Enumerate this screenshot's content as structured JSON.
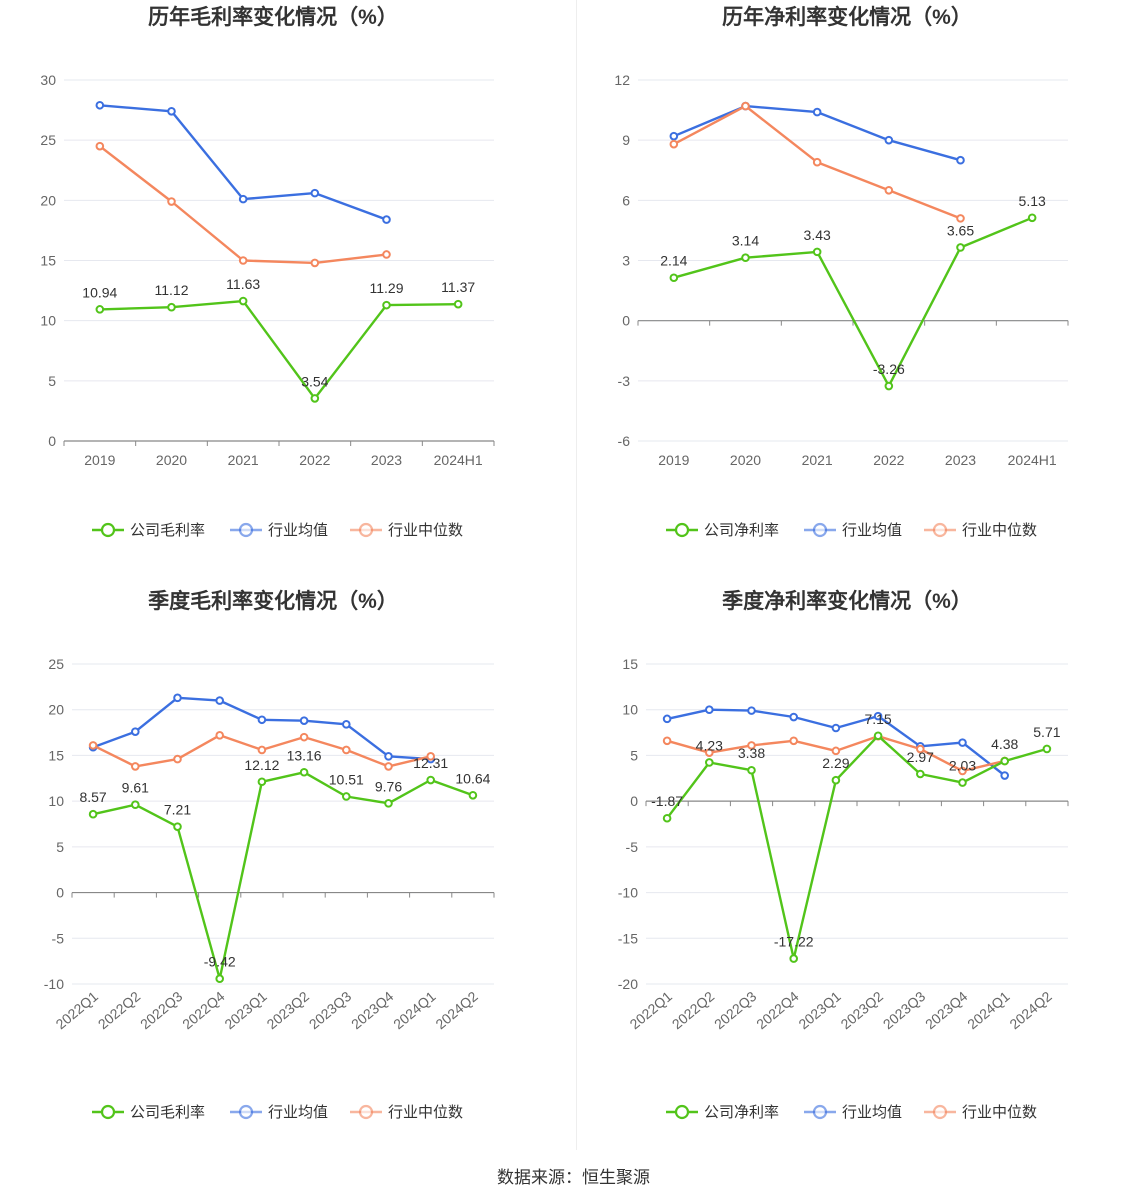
{
  "source_text": "数据来源：恒生聚源",
  "colors": {
    "company": "#52c41a",
    "industry_avg": "#3b6fe0",
    "industry_median": "#f4875e",
    "grid": "#e6e8ef",
    "axis": "#888888"
  },
  "chart_data": [
    {
      "type": "line",
      "title": "历年毛利率变化情况（%）",
      "categories": [
        "2019",
        "2020",
        "2021",
        "2022",
        "2023",
        "2024H1"
      ],
      "ylim": [
        0,
        30
      ],
      "yticks": [
        0,
        5,
        10,
        15,
        20,
        25,
        30
      ],
      "tick_labels": [
        "0",
        "5",
        "10",
        "15",
        "20",
        "25",
        "30"
      ],
      "rotate_x": false,
      "legend": [
        "公司毛利率",
        "行业均值",
        "行业中位数"
      ],
      "series": [
        {
          "name": "公司毛利率",
          "values": [
            10.94,
            11.12,
            11.63,
            3.54,
            11.29,
            11.37
          ],
          "labels": [
            "10.94",
            "11.12",
            "11.63",
            "3.54",
            "11.29",
            "11.37"
          ]
        },
        {
          "name": "行业均值",
          "values": [
            27.9,
            27.4,
            20.1,
            20.6,
            18.4,
            null
          ]
        },
        {
          "name": "行业中位数",
          "values": [
            24.5,
            19.9,
            15.0,
            14.8,
            15.5,
            null
          ]
        }
      ]
    },
    {
      "type": "line",
      "title": "历年净利率变化情况（%）",
      "categories": [
        "2019",
        "2020",
        "2021",
        "2022",
        "2023",
        "2024H1"
      ],
      "ylim": [
        -6,
        12
      ],
      "yticks": [
        -6,
        -3,
        0,
        3,
        6,
        9,
        12
      ],
      "tick_labels": [
        "-6",
        "-3",
        "0",
        "3",
        "6",
        "9",
        "12"
      ],
      "rotate_x": false,
      "legend": [
        "公司净利率",
        "行业均值",
        "行业中位数"
      ],
      "series": [
        {
          "name": "公司净利率",
          "values": [
            2.14,
            3.14,
            3.43,
            -3.26,
            3.65,
            5.13
          ],
          "labels": [
            "2.14",
            "3.14",
            "3.43",
            "-3.26",
            "3.65",
            "5.13"
          ]
        },
        {
          "name": "行业均值",
          "values": [
            9.2,
            10.7,
            10.4,
            9.0,
            8.0,
            null
          ]
        },
        {
          "name": "行业中位数",
          "values": [
            8.8,
            10.7,
            7.9,
            6.5,
            5.1,
            null
          ]
        }
      ]
    },
    {
      "type": "line",
      "title": "季度毛利率变化情况（%）",
      "categories": [
        "2022Q1",
        "2022Q2",
        "2022Q3",
        "2022Q4",
        "2023Q1",
        "2023Q2",
        "2023Q3",
        "2023Q4",
        "2024Q1",
        "2024Q2"
      ],
      "ylim": [
        -10,
        25
      ],
      "yticks": [
        -10,
        -5,
        0,
        5,
        10,
        15,
        20,
        25
      ],
      "tick_labels": [
        "-10",
        "-5",
        "0",
        "5",
        "10",
        "15",
        "20",
        "25"
      ],
      "rotate_x": true,
      "legend": [
        "公司毛利率",
        "行业均值",
        "行业中位数"
      ],
      "series": [
        {
          "name": "公司毛利率",
          "values": [
            8.57,
            9.61,
            7.21,
            -9.42,
            12.12,
            13.16,
            10.51,
            9.76,
            12.31,
            10.64
          ],
          "labels": [
            "8.57",
            "9.61",
            "7.21",
            "-9.42",
            "12.12",
            "13.16",
            "10.51",
            "9.76",
            "12.31",
            "10.64"
          ]
        },
        {
          "name": "行业均值",
          "values": [
            15.9,
            17.6,
            21.3,
            21.0,
            18.9,
            18.8,
            18.4,
            14.9,
            14.6,
            null
          ]
        },
        {
          "name": "行业中位数",
          "values": [
            16.1,
            13.8,
            14.6,
            17.2,
            15.6,
            17.0,
            15.6,
            13.8,
            14.9,
            null
          ]
        }
      ]
    },
    {
      "type": "line",
      "title": "季度净利率变化情况（%）",
      "categories": [
        "2022Q1",
        "2022Q2",
        "2022Q3",
        "2022Q4",
        "2023Q1",
        "2023Q2",
        "2023Q3",
        "2023Q4",
        "2024Q1",
        "2024Q2"
      ],
      "ylim": [
        -20,
        15
      ],
      "yticks": [
        -20,
        -15,
        -10,
        -5,
        0,
        5,
        10,
        15
      ],
      "tick_labels": [
        "-20",
        "-15",
        "-10",
        "-5",
        "0",
        "5",
        "10",
        "15"
      ],
      "rotate_x": true,
      "legend": [
        "公司净利率",
        "行业均值",
        "行业中位数"
      ],
      "series": [
        {
          "name": "公司净利率",
          "values": [
            -1.87,
            4.23,
            3.38,
            -17.22,
            2.29,
            7.15,
            2.97,
            2.03,
            4.38,
            5.71
          ],
          "labels": [
            "-1.87",
            "4.23",
            "3.38",
            "-17.22",
            "2.29",
            "7.15",
            "2.97",
            "2.03",
            "4.38",
            "5.71"
          ]
        },
        {
          "name": "行业均值",
          "values": [
            9.0,
            10.0,
            9.9,
            9.2,
            8.0,
            9.3,
            6.0,
            6.4,
            2.8,
            null
          ]
        },
        {
          "name": "行业中位数",
          "values": [
            6.6,
            5.3,
            6.1,
            6.6,
            5.5,
            7.1,
            5.7,
            3.3,
            4.4,
            null
          ]
        }
      ]
    }
  ]
}
